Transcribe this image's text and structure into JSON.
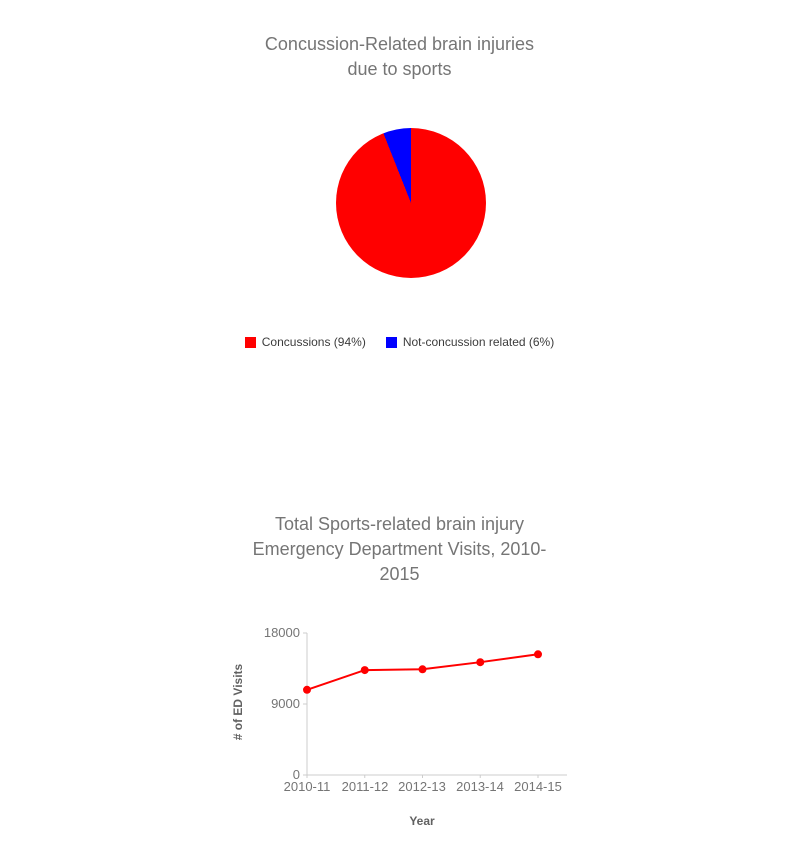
{
  "page": {
    "background": "#ffffff"
  },
  "chart_data": [
    {
      "type": "pie",
      "title": "Concussion-Related brain injuries due to sports",
      "title_lines": [
        "Concussion-Related brain injuries",
        "due to sports"
      ],
      "labels": [
        "Concussions",
        "Not-concussion related"
      ],
      "values": [
        94,
        6
      ],
      "colors": [
        "#ff0000",
        "#0000ff"
      ],
      "legend": [
        {
          "label": "Concussions (94%)",
          "color": "#ff0000"
        },
        {
          "label": "Not-concussion related (6%)",
          "color": "#0000ff"
        }
      ],
      "legend_position": "bottom",
      "title_color": "#757575"
    },
    {
      "type": "line",
      "title": "Total Sports-related brain injury Emergency Department Visits, 2010-2015",
      "title_lines": [
        "Total Sports-related brain injury",
        "Emergency Department Visits, 2010-",
        "2015"
      ],
      "categories": [
        "2010-11",
        "2011-12",
        "2012-13",
        "2013-14",
        "2014-15"
      ],
      "values": [
        10800,
        13300,
        13400,
        14300,
        15300
      ],
      "color": "#ff0000",
      "marker": "circle",
      "xlabel": "Year",
      "ylabel": "# of ED Visits",
      "ylim": [
        0,
        18000
      ],
      "yticks": [
        0,
        9000,
        18000
      ],
      "grid": false,
      "legend_position": "none",
      "title_color": "#757575",
      "axis_color": "#cccccc",
      "tick_label_color": "#757575",
      "axis_title_color": "#616161"
    }
  ]
}
